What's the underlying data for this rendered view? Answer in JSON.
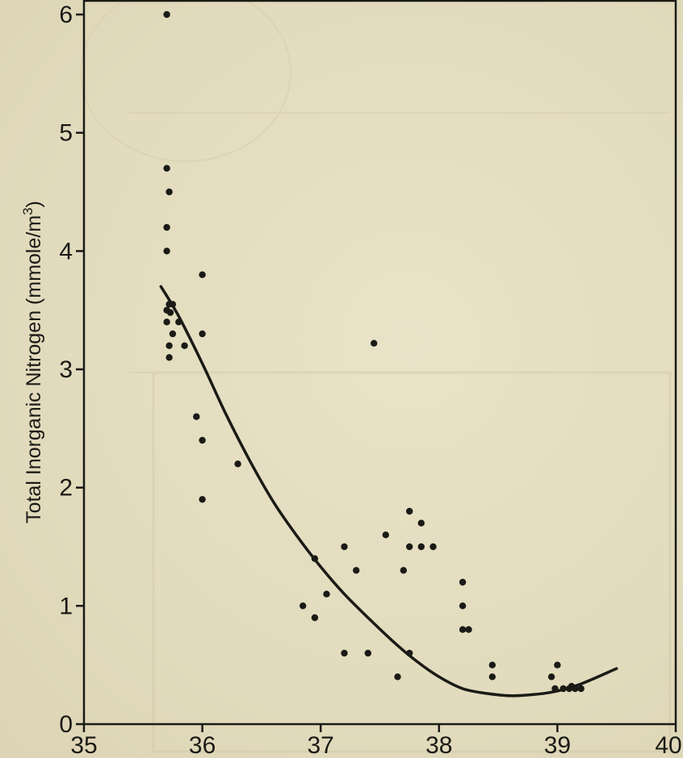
{
  "chart_data": {
    "type": "scatter",
    "title": "",
    "xlabel": "",
    "ylabel": "Total Inorganic Nitrogen (mmole/m3)",
    "ylabel_parts": {
      "main": "Total Inorganic Nitrogen (mmole/m",
      "superscript": "3",
      "close": ")"
    },
    "xlim": [
      35,
      40
    ],
    "ylim": [
      0,
      6
    ],
    "x_ticks": [
      35,
      36,
      37,
      38,
      39,
      40
    ],
    "x_tick_labels": [
      "35",
      "36",
      "37",
      "38",
      "39",
      "40"
    ],
    "y_ticks": [
      0,
      1,
      2,
      3,
      4,
      5,
      6
    ],
    "y_tick_labels": [
      "0",
      "1",
      "2",
      "3",
      "4",
      "5",
      "6"
    ],
    "grid": false,
    "series": [
      {
        "kind": "scatter",
        "color": "#1a1a16",
        "points": [
          [
            35.7,
            6.0
          ],
          [
            35.7,
            4.7
          ],
          [
            35.72,
            4.5
          ],
          [
            35.7,
            4.2
          ],
          [
            35.7,
            4.0
          ],
          [
            35.72,
            3.55
          ],
          [
            35.75,
            3.55
          ],
          [
            35.7,
            3.5
          ],
          [
            35.73,
            3.48
          ],
          [
            35.8,
            3.4
          ],
          [
            35.7,
            3.4
          ],
          [
            35.75,
            3.3
          ],
          [
            35.72,
            3.2
          ],
          [
            35.85,
            3.2
          ],
          [
            35.72,
            3.1
          ],
          [
            36.0,
            3.8
          ],
          [
            36.0,
            3.3
          ],
          [
            35.95,
            2.6
          ],
          [
            36.0,
            2.4
          ],
          [
            36.0,
            1.9
          ],
          [
            36.3,
            2.2
          ],
          [
            36.85,
            1.0
          ],
          [
            36.95,
            1.4
          ],
          [
            36.95,
            0.9
          ],
          [
            37.05,
            1.1
          ],
          [
            37.2,
            1.5
          ],
          [
            37.2,
            0.6
          ],
          [
            37.3,
            1.3
          ],
          [
            37.4,
            0.6
          ],
          [
            37.45,
            3.22
          ],
          [
            37.55,
            1.6
          ],
          [
            37.65,
            0.4
          ],
          [
            37.7,
            1.3
          ],
          [
            37.75,
            1.8
          ],
          [
            37.75,
            1.5
          ],
          [
            37.75,
            0.6
          ],
          [
            37.85,
            1.7
          ],
          [
            37.85,
            1.5
          ],
          [
            37.95,
            1.5
          ],
          [
            38.2,
            1.2
          ],
          [
            38.2,
            1.0
          ],
          [
            38.2,
            0.8
          ],
          [
            38.25,
            0.8
          ],
          [
            38.45,
            0.5
          ],
          [
            38.45,
            0.4
          ],
          [
            38.95,
            0.4
          ],
          [
            39.0,
            0.5
          ],
          [
            38.98,
            0.3
          ],
          [
            39.05,
            0.3
          ],
          [
            39.1,
            0.3
          ],
          [
            39.15,
            0.3
          ],
          [
            39.2,
            0.3
          ],
          [
            39.12,
            0.32
          ]
        ]
      },
      {
        "kind": "line",
        "color": "#1a1a16",
        "x": [
          35.65,
          35.8,
          36.0,
          36.2,
          36.4,
          36.6,
          36.8,
          37.0,
          37.2,
          37.4,
          37.6,
          37.8,
          38.0,
          38.2,
          38.4,
          38.6,
          38.8,
          39.0,
          39.2,
          39.5
        ],
        "y": [
          3.7,
          3.45,
          3.05,
          2.62,
          2.23,
          1.88,
          1.59,
          1.33,
          1.1,
          0.9,
          0.71,
          0.54,
          0.4,
          0.3,
          0.26,
          0.24,
          0.25,
          0.28,
          0.34,
          0.47
        ]
      }
    ]
  }
}
